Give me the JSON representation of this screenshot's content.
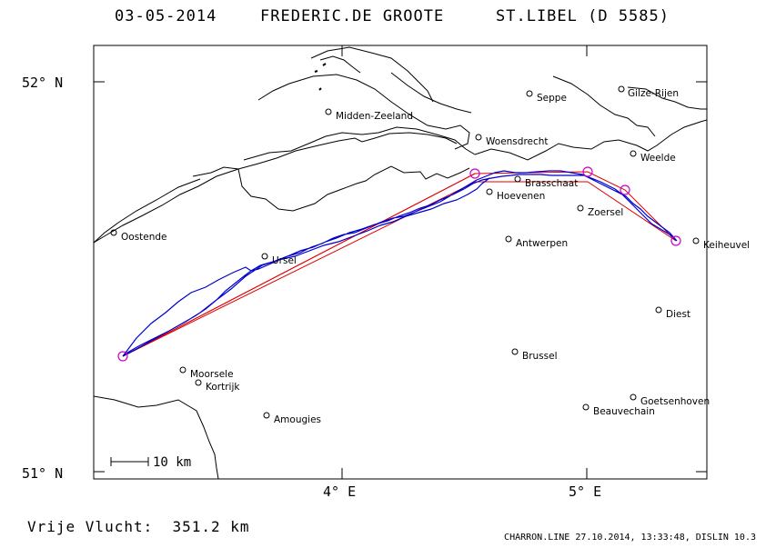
{
  "header": {
    "date": "03-05-2014",
    "pilot": "FREDERIC.DE GROOTE",
    "site": "ST.LIBEL (D 5585)"
  },
  "axes": {
    "lat_top": "52° N",
    "lat_bottom": "51° N",
    "lon_left": "4° E",
    "lon_right": "5° E"
  },
  "scale_bar": {
    "label": "10 km"
  },
  "footer": {
    "distance_label": "Vrije Vlucht:",
    "distance_value": "351.2 km",
    "credit": "CHARRON.LINE 27.10.2014, 13:33:48, DISLIN 10.3"
  },
  "colors": {
    "route": "#e00000",
    "track": "#0000cc",
    "turnpoint": "#cc00cc",
    "coast": "#000000"
  },
  "cities": [
    {
      "name": "Seppe"
    },
    {
      "name": "Gilze-Rijen"
    },
    {
      "name": "Midden-Zeeland"
    },
    {
      "name": "Woensdrecht"
    },
    {
      "name": "Weelde"
    },
    {
      "name": "Brasschaat"
    },
    {
      "name": "Hoevenen"
    },
    {
      "name": "Zoersel"
    },
    {
      "name": "Oostende"
    },
    {
      "name": "Antwerpen"
    },
    {
      "name": "Keiheuvel"
    },
    {
      "name": "Ursel"
    },
    {
      "name": "Diest"
    },
    {
      "name": "Brussel"
    },
    {
      "name": "Moorsele"
    },
    {
      "name": "Kortrijk"
    },
    {
      "name": "Goetsenhoven"
    },
    {
      "name": "Beauvechain"
    },
    {
      "name": "Amougies"
    }
  ]
}
